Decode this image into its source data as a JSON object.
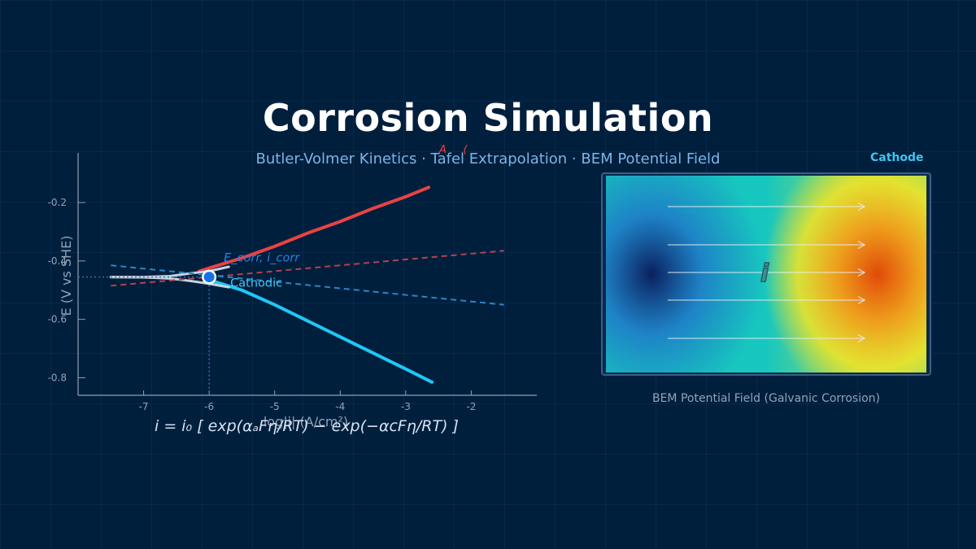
{
  "header": {
    "title": "Corrosion Simulation",
    "subtitle": "Butler-Volmer Kinetics  ·  Tafel Extrapolation  ·  BEM Potential Field"
  },
  "equation": "i = i₀ [ exp(αₐFη/RT) − exp(−αcFη/RT) ]",
  "chart_data": {
    "type": "line",
    "title": "",
    "xlabel": "log|i| (A/cm²)",
    "ylabel": "E (V vs SHE)",
    "xlim": [
      -8.0,
      -1.0
    ],
    "ylim": [
      -0.86,
      -0.03
    ],
    "xticks": [
      -7,
      -6,
      -5,
      -4,
      -3,
      -2
    ],
    "yticks": [
      -0.2,
      -0.4,
      -0.6,
      -0.8
    ],
    "ytick_labels": [
      "-0.2",
      "-0.4",
      "-0.6",
      "-0.8"
    ],
    "grid": false,
    "series": [
      {
        "kind": "anodic",
        "style": "solid",
        "color": "#e84343",
        "x": [
          -6.15,
          -5.5,
          -5.0,
          -4.5,
          -4.0,
          -3.5,
          -3.0,
          -2.65
        ],
        "y": [
          -0.435,
          -0.39,
          -0.35,
          -0.305,
          -0.265,
          -0.22,
          -0.18,
          -0.148
        ]
      },
      {
        "kind": "cathodic",
        "style": "solid",
        "color": "#1ec8f5",
        "x": [
          -6.0,
          -5.5,
          -5.0,
          -4.5,
          -4.0,
          -3.5,
          -3.0,
          -2.6
        ],
        "y": [
          -0.465,
          -0.5,
          -0.55,
          -0.605,
          -0.66,
          -0.715,
          -0.77,
          -0.815
        ]
      },
      {
        "kind": "measured",
        "style": "solid",
        "color": "#c7d2dd",
        "x": [
          -7.5,
          -7.0,
          -6.6,
          -6.3,
          -6.0,
          -5.7
        ],
        "y": [
          -0.455,
          -0.455,
          -0.452,
          -0.443,
          -0.435,
          -0.42
        ]
      },
      {
        "kind": "measured-lower",
        "style": "solid",
        "color": "#c7d2dd",
        "x": [
          -7.5,
          -7.0,
          -6.6,
          -6.3,
          -6.0,
          -5.7
        ],
        "y": [
          -0.455,
          -0.456,
          -0.46,
          -0.468,
          -0.478,
          -0.49
        ]
      },
      {
        "kind": "anodic-tafel",
        "style": "dashed",
        "color": "#b8404e",
        "x": [
          -7.5,
          -1.5
        ],
        "y": [
          -0.485,
          -0.365
        ]
      },
      {
        "kind": "cathodic-tafel",
        "style": "dashed",
        "color": "#2b86c4",
        "x": [
          -7.5,
          -1.5
        ],
        "y": [
          -0.415,
          -0.55
        ]
      }
    ],
    "point": {
      "x": -6.0,
      "y": -0.455
    },
    "annotations": {
      "corr": "E_corr, i_corr",
      "cathodic": "Cathodic",
      "clipped": "A     (    "
    }
  },
  "heatmap": {
    "caption": "BEM Potential Field (Galvanic Corrosion)",
    "current_symbol": "i",
    "tag": "Cathode",
    "colors": {
      "low": "#0b1f5e",
      "mid_low": "#1f78c8",
      "mid": "#17c7bf",
      "mid_high": "#90d86a",
      "high_mid": "#f2e426",
      "high": "#e04a08"
    },
    "flow_arrows": 5
  }
}
